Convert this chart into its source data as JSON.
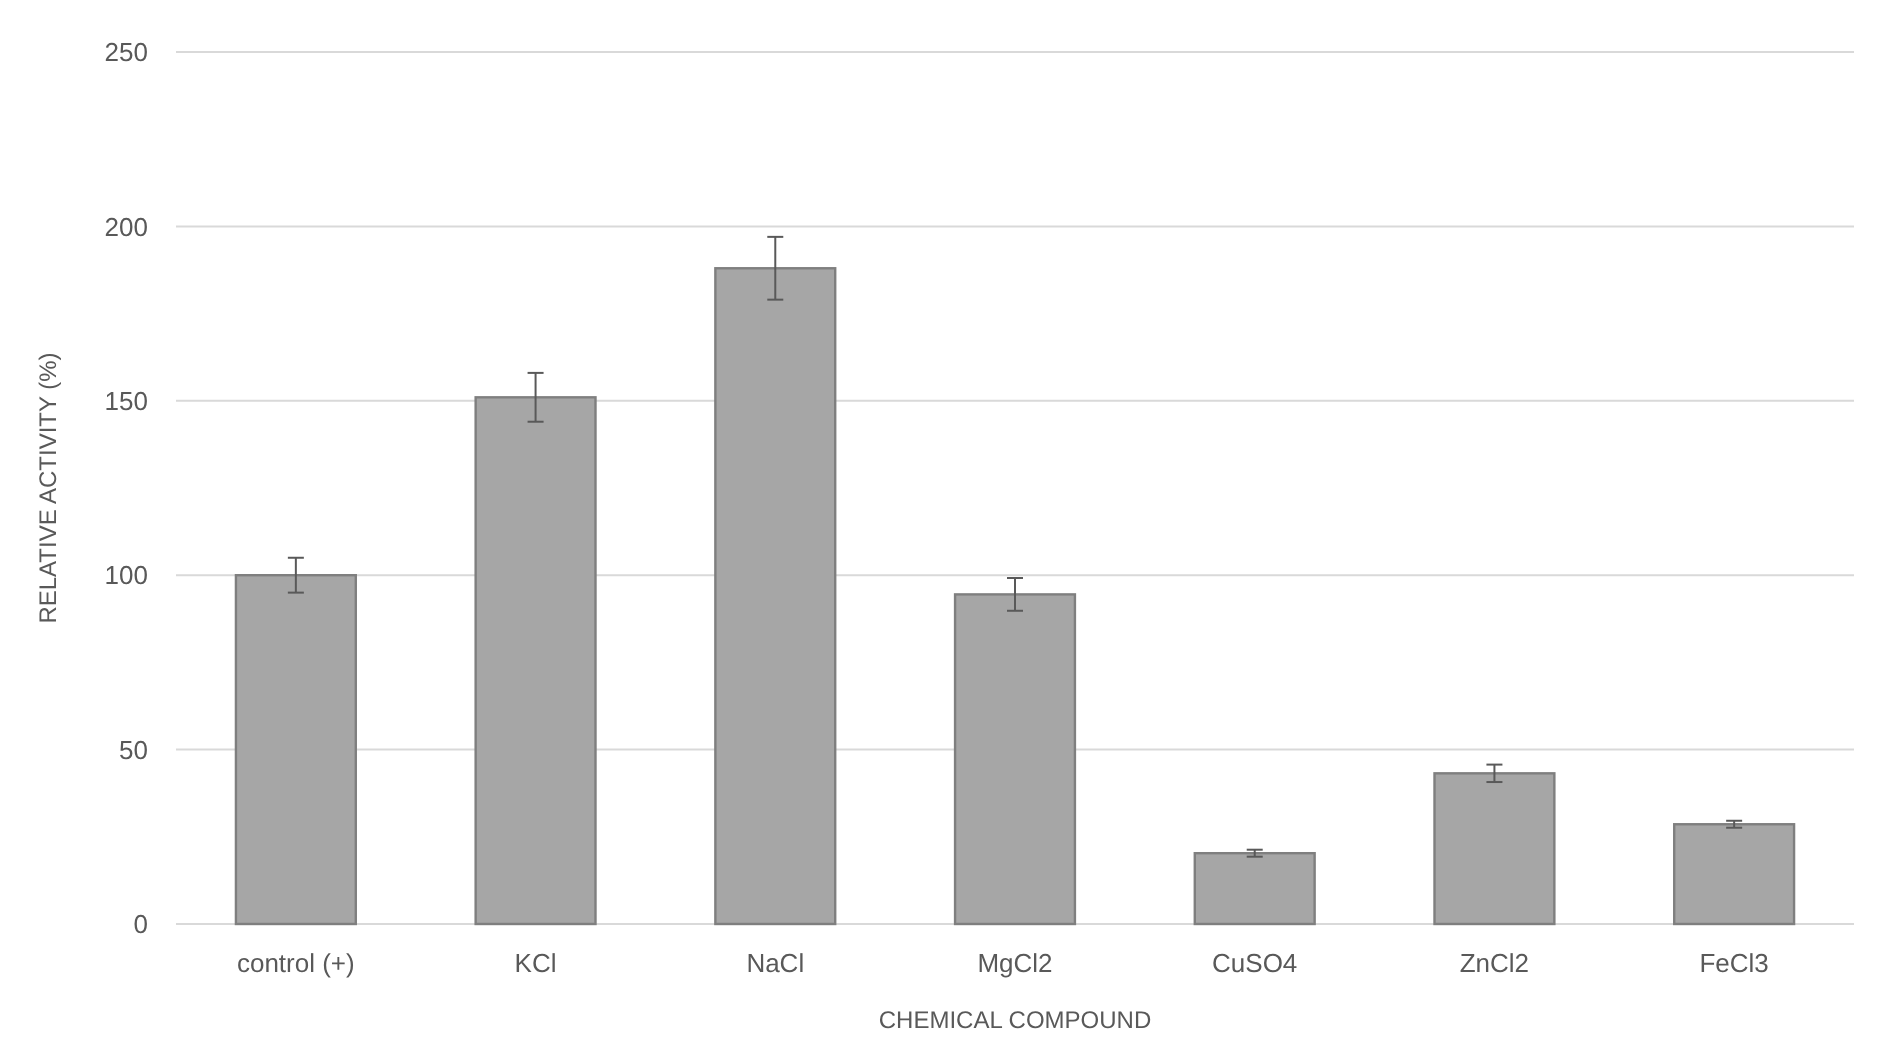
{
  "chart_data": {
    "type": "bar",
    "xlabel": "CHEMICAL COMPOUND",
    "ylabel": "RELATIVE ACTIVITY (%)",
    "categories": [
      "control (+)",
      "KCl",
      "NaCl",
      "MgCl2",
      "CuSO4",
      "ZnCl2",
      "FeCl3"
    ],
    "values": [
      100,
      151,
      188,
      94.5,
      20.3,
      43.2,
      28.6
    ],
    "errors": [
      5,
      7,
      9,
      4.7,
      1,
      2.5,
      1
    ],
    "color": "#a6a6a6",
    "ylim": [
      0,
      250
    ],
    "yticks": [
      0,
      50,
      100,
      150,
      200,
      250
    ],
    "grid": "y"
  }
}
